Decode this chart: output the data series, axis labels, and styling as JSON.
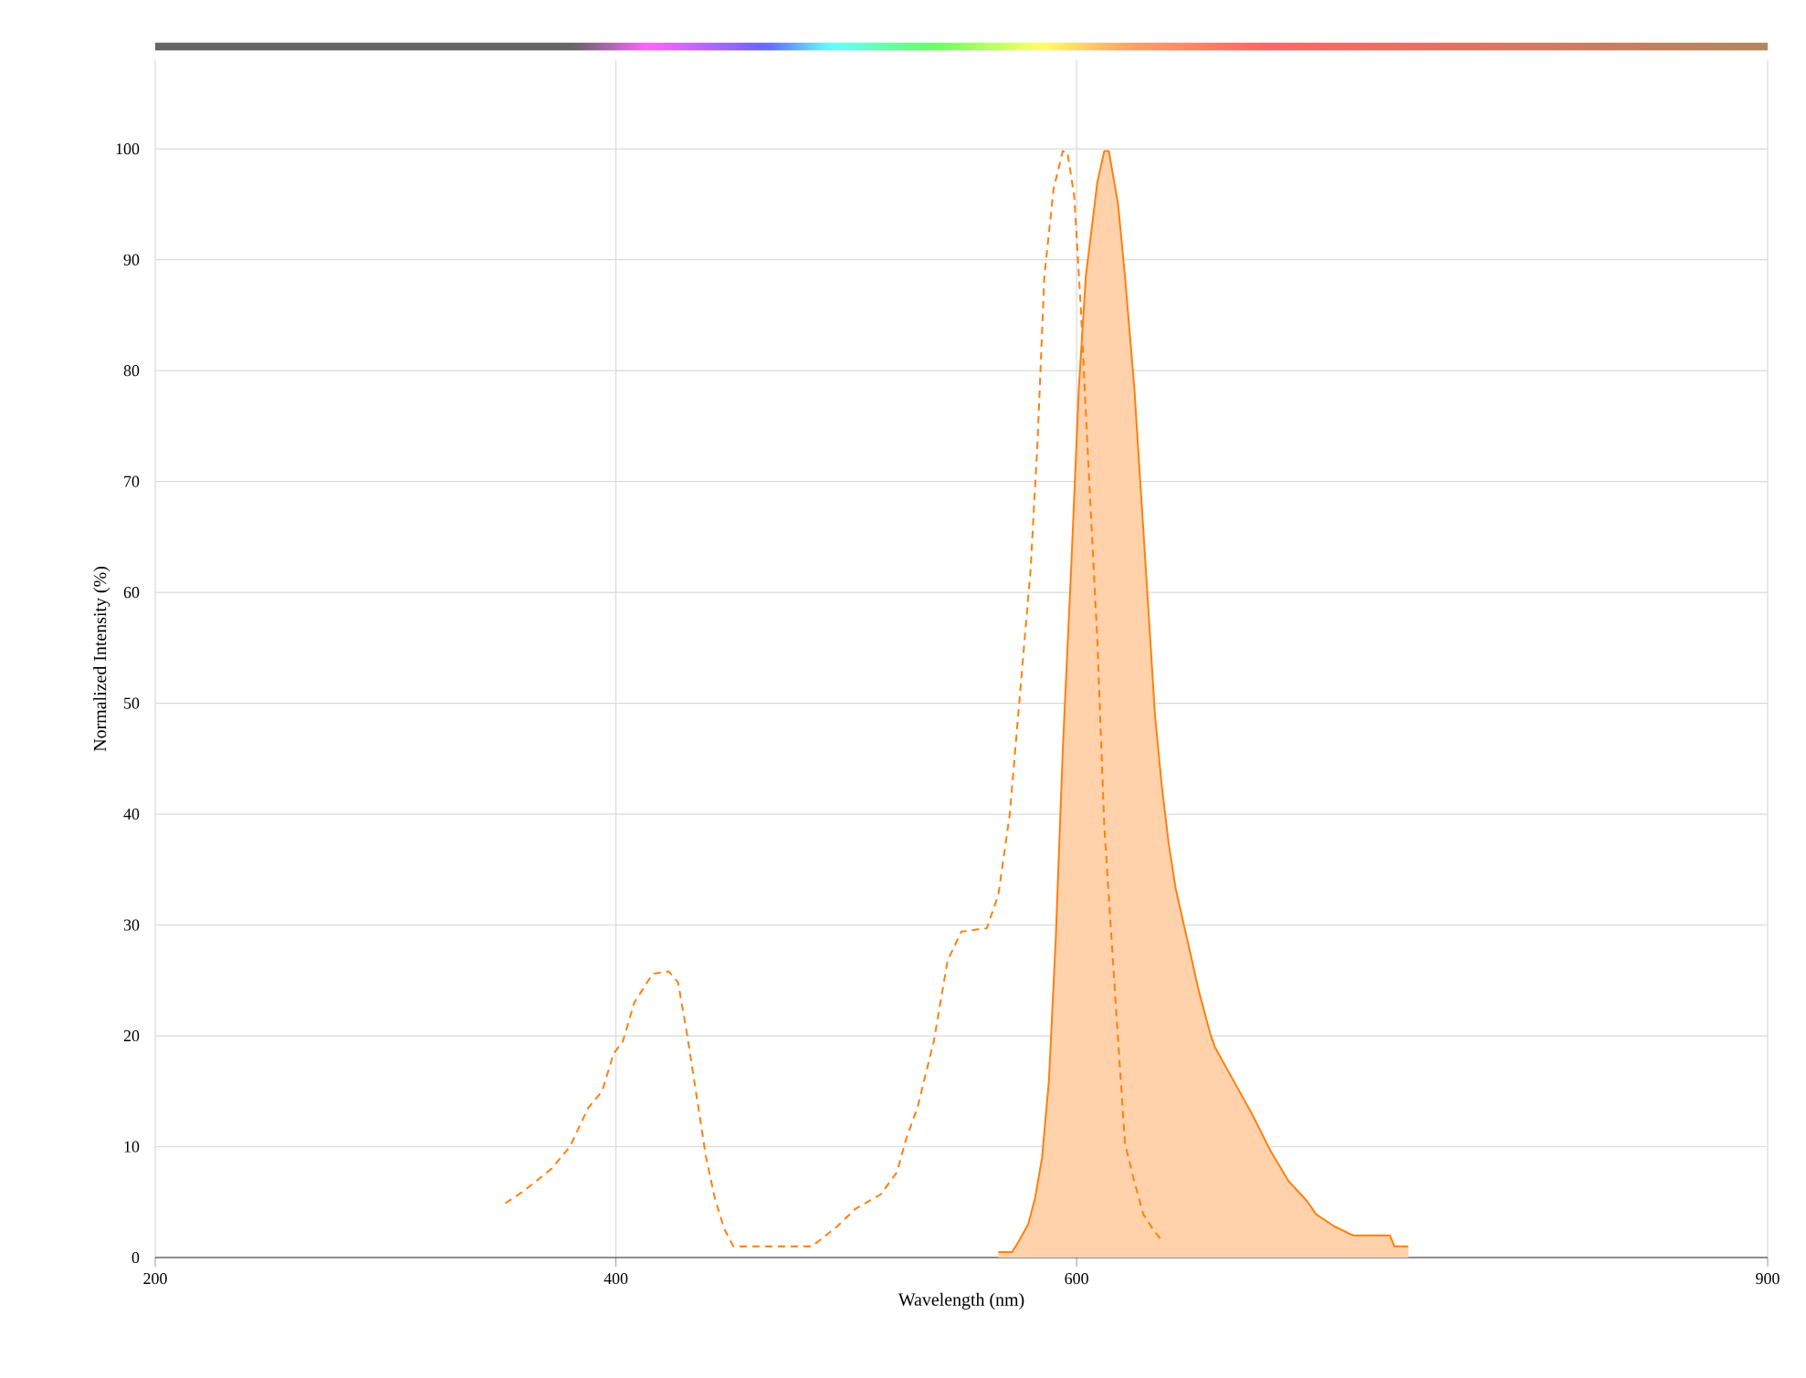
{
  "chart_data": {
    "type": "line",
    "xlabel": "Wavelength (nm)",
    "ylabel": "Normalized Intensity (%)",
    "xlim": [
      200,
      900
    ],
    "ylim": [
      0,
      108
    ],
    "xticks": [
      200,
      400,
      600,
      900
    ],
    "yticks": [
      0,
      10,
      20,
      30,
      40,
      50,
      60,
      70,
      80,
      90,
      100
    ],
    "grid": true,
    "marker": "none",
    "series": [
      {
        "type": "area",
        "color": "#ff7f0e",
        "line_style": "solid",
        "x": [
          566,
          572,
          575,
          579,
          582,
          585,
          588,
          591,
          594,
          597.6,
          601,
          604,
          609,
          612,
          614,
          618,
          621,
          625,
          628,
          631,
          634,
          637,
          640,
          643,
          648,
          653,
          658,
          660,
          668,
          676,
          684,
          692,
          700,
          704,
          712,
          720,
          736,
          738,
          744
        ],
        "values": [
          0.5,
          0.5,
          1.5,
          3,
          5.4,
          9,
          16,
          29,
          45.8,
          62,
          78.6,
          88.5,
          97,
          99.8,
          99.8,
          95,
          88.5,
          78.6,
          68.8,
          59,
          49,
          42.5,
          37.3,
          33.3,
          28.7,
          24.1,
          20.2,
          19,
          16,
          13,
          9.7,
          6.9,
          5.1,
          3.9,
          2.8,
          2,
          2,
          1,
          1
        ]
      },
      {
        "color": "#ff7f0e",
        "line_style": "dashed",
        "x": [
          352,
          360,
          366,
          372,
          380,
          388,
          394,
          399,
          403,
          408,
          416,
          423,
          427,
          431,
          435,
          439,
          443,
          447,
          451,
          485,
          490,
          496,
          504,
          515,
          522,
          526,
          531,
          538,
          544,
          550,
          561,
          566,
          571,
          575,
          580,
          583,
          586,
          590,
          594,
          596,
          599,
          602,
          605,
          609,
          612,
          617,
          621,
          625,
          629,
          633,
          637
        ],
        "values": [
          4.9,
          6,
          7,
          8,
          10,
          13.5,
          15,
          18.4,
          19.5,
          23,
          25.6,
          25.8,
          24.8,
          20,
          14.6,
          9.2,
          5.3,
          2.6,
          1,
          1,
          1.8,
          2.8,
          4.4,
          5.7,
          7.7,
          10.7,
          13.6,
          19.5,
          26.8,
          29.4,
          29.7,
          32.7,
          40,
          49.8,
          62,
          73.4,
          88.5,
          96.4,
          99.8,
          99.7,
          95.7,
          85,
          72,
          55.7,
          39,
          22.8,
          10.3,
          6.9,
          3.9,
          2.6,
          1.5
        ]
      }
    ]
  }
}
